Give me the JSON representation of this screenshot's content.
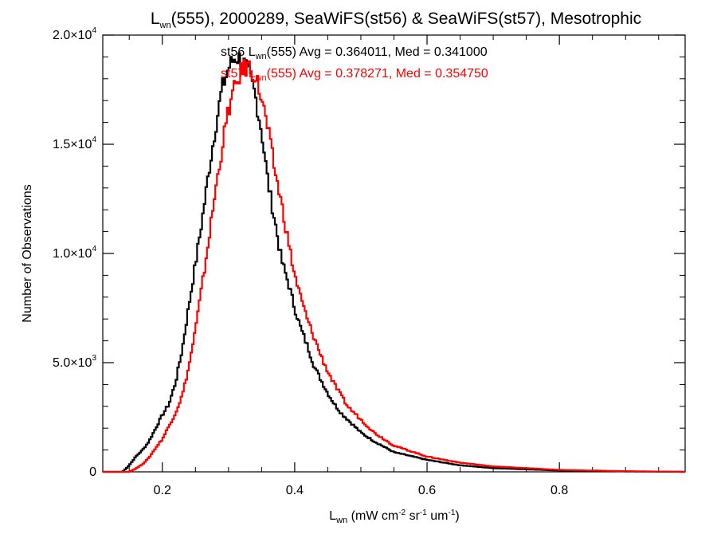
{
  "chart_data": {
    "type": "line",
    "title": {
      "parts": [
        "L",
        "wn",
        "(555), 2000289, SeaWiFS(st56) & SeaWiFS(st57), Mesotrophic"
      ]
    },
    "xlabel": {
      "parts": [
        "L",
        "wn",
        " (mW cm",
        "-2",
        " sr",
        "-1",
        " um",
        "-1",
        ")"
      ]
    },
    "ylabel": "Number of Observations",
    "xlim": [
      0.11,
      0.99
    ],
    "ylim": [
      0,
      20000
    ],
    "x_ticks": [
      {
        "value": 0.2,
        "label": "0.2"
      },
      {
        "value": 0.4,
        "label": "0.4"
      },
      {
        "value": 0.6,
        "label": "0.6"
      },
      {
        "value": 0.8,
        "label": "0.8"
      }
    ],
    "y_ticks": [
      {
        "value": 0,
        "mantissa": "0",
        "exponent": ""
      },
      {
        "value": 5000,
        "mantissa": "5.0×10",
        "exponent": "3"
      },
      {
        "value": 10000,
        "mantissa": "1.0×10",
        "exponent": "4"
      },
      {
        "value": 15000,
        "mantissa": "1.5×10",
        "exponent": "4"
      },
      {
        "value": 20000,
        "mantissa": "2.0×10",
        "exponent": "4"
      }
    ],
    "annotations": [
      {
        "parts": [
          "st56 L",
          "wn",
          "(555) Avg = 0.364011, Med = 0.341000"
        ],
        "color": "#000000"
      },
      {
        "parts": [
          "st57 L",
          "wn",
          "(555) Avg = 0.378271, Med = 0.354750"
        ],
        "color": "#ff0000"
      }
    ],
    "series": [
      {
        "color": "#000000",
        "x": [
          0.11,
          0.14,
          0.15,
          0.16,
          0.17,
          0.18,
          0.19,
          0.2,
          0.21,
          0.22,
          0.23,
          0.24,
          0.25,
          0.26,
          0.27,
          0.28,
          0.29,
          0.3,
          0.31,
          0.32,
          0.33,
          0.34,
          0.35,
          0.36,
          0.37,
          0.38,
          0.39,
          0.4,
          0.41,
          0.42,
          0.43,
          0.44,
          0.45,
          0.46,
          0.47,
          0.48,
          0.5,
          0.52,
          0.55,
          0.6,
          0.65,
          0.7,
          0.8,
          0.9,
          0.99
        ],
        "y": [
          0,
          0,
          300,
          700,
          1000,
          1400,
          2000,
          2600,
          3100,
          4100,
          5600,
          7600,
          9500,
          11500,
          13700,
          15700,
          17500,
          18500,
          19000,
          18900,
          18300,
          17300,
          15600,
          13200,
          11500,
          9700,
          8700,
          7500,
          6500,
          5700,
          4800,
          4200,
          3600,
          3100,
          2700,
          2400,
          1800,
          1400,
          900,
          550,
          300,
          170,
          60,
          20,
          0
        ]
      },
      {
        "color": "#ff0000",
        "x": [
          0.11,
          0.15,
          0.16,
          0.17,
          0.18,
          0.19,
          0.2,
          0.21,
          0.22,
          0.23,
          0.24,
          0.25,
          0.26,
          0.27,
          0.28,
          0.29,
          0.3,
          0.31,
          0.32,
          0.33,
          0.34,
          0.35,
          0.36,
          0.37,
          0.38,
          0.39,
          0.4,
          0.41,
          0.42,
          0.43,
          0.44,
          0.45,
          0.46,
          0.47,
          0.48,
          0.5,
          0.52,
          0.55,
          0.6,
          0.65,
          0.7,
          0.8,
          0.9,
          0.99
        ],
        "y": [
          0,
          0,
          150,
          350,
          650,
          1100,
          1500,
          2100,
          2700,
          3500,
          4800,
          6500,
          8500,
          10600,
          12800,
          14800,
          16600,
          17600,
          18400,
          18600,
          18200,
          17100,
          15600,
          13800,
          12300,
          10600,
          9000,
          7900,
          6900,
          6100,
          5300,
          4600,
          4000,
          3500,
          3000,
          2400,
          1800,
          1200,
          700,
          420,
          250,
          90,
          30,
          0
        ]
      }
    ]
  }
}
